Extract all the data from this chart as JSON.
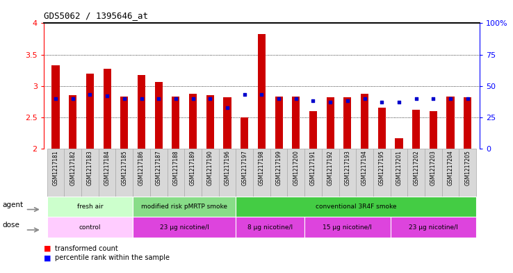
{
  "title": "GDS5062 / 1395646_at",
  "samples": [
    "GSM1217181",
    "GSM1217182",
    "GSM1217183",
    "GSM1217184",
    "GSM1217185",
    "GSM1217186",
    "GSM1217187",
    "GSM1217188",
    "GSM1217189",
    "GSM1217190",
    "GSM1217196",
    "GSM1217197",
    "GSM1217198",
    "GSM1217199",
    "GSM1217200",
    "GSM1217191",
    "GSM1217192",
    "GSM1217193",
    "GSM1217194",
    "GSM1217195",
    "GSM1217201",
    "GSM1217202",
    "GSM1217203",
    "GSM1217204",
    "GSM1217205"
  ],
  "transformed_count": [
    3.33,
    2.85,
    3.2,
    3.27,
    2.83,
    3.17,
    3.06,
    2.83,
    2.88,
    2.85,
    2.82,
    2.5,
    3.83,
    2.83,
    2.83,
    2.6,
    2.82,
    2.82,
    2.88,
    2.65,
    2.17,
    2.62,
    2.6,
    2.83,
    2.82
  ],
  "percentile_rank": [
    40,
    40,
    43,
    42,
    40,
    40,
    40,
    40,
    40,
    40,
    33,
    43,
    43,
    40,
    40,
    38,
    37,
    38,
    40,
    37,
    37,
    40,
    40,
    40,
    40
  ],
  "y_min": 2.0,
  "y_max": 4.0,
  "y_ticks_left": [
    2.0,
    2.5,
    3.0,
    3.5,
    4.0
  ],
  "y_labels_left": [
    "2",
    "2.5",
    "3",
    "3.5",
    "4"
  ],
  "right_y_ticks": [
    0,
    25,
    50,
    75,
    100
  ],
  "right_y_labels": [
    "0",
    "25",
    "50",
    "75",
    "100%"
  ],
  "bar_color": "#cc0000",
  "dot_color": "#0000cc",
  "plot_bg_color": "#ffffff",
  "agent_groups": [
    {
      "label": "fresh air",
      "start": 0,
      "end": 5,
      "color": "#ccffcc"
    },
    {
      "label": "modified risk pMRTP smoke",
      "start": 5,
      "end": 11,
      "color": "#88dd88"
    },
    {
      "label": "conventional 3R4F smoke",
      "start": 11,
      "end": 25,
      "color": "#44cc44"
    }
  ],
  "dose_groups": [
    {
      "label": "control",
      "start": 0,
      "end": 5,
      "color": "#ffccff"
    },
    {
      "label": "23 μg nicotine/l",
      "start": 5,
      "end": 11,
      "color": "#dd44dd"
    },
    {
      "label": "8 μg nicotine/l",
      "start": 11,
      "end": 15,
      "color": "#dd44dd"
    },
    {
      "label": "15 μg nicotine/l",
      "start": 15,
      "end": 20,
      "color": "#dd44dd"
    },
    {
      "label": "23 μg nicotine/l",
      "start": 20,
      "end": 25,
      "color": "#dd44dd"
    }
  ],
  "xtick_bg": "#d8d8d8",
  "xtick_border": "#aaaaaa"
}
